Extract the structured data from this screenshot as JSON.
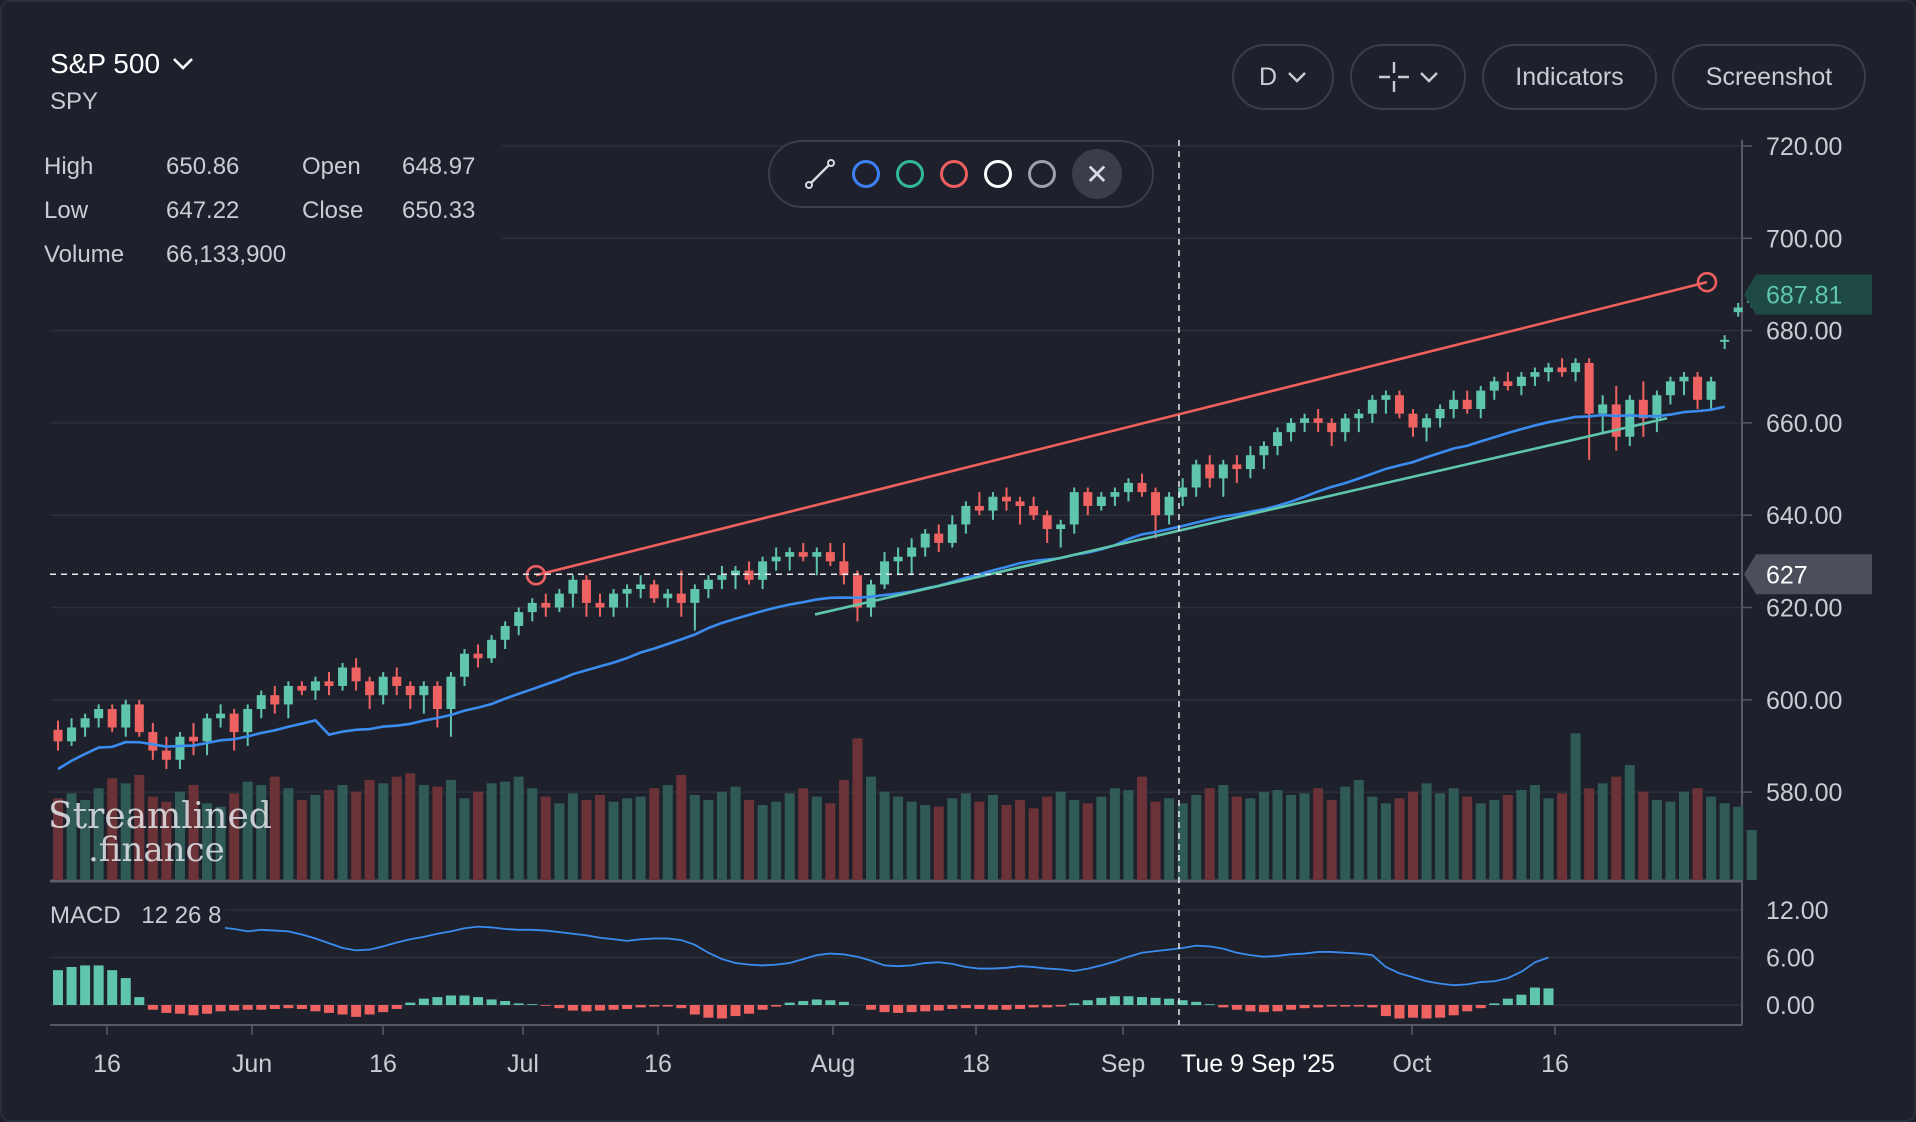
{
  "header": {
    "symbol_name": "S&P 500",
    "ticker": "SPY",
    "interval_label": "D",
    "indicators_label": "Indicators",
    "screenshot_label": "Screenshot"
  },
  "ohlc": {
    "high_label": "High",
    "high": "650.86",
    "open_label": "Open",
    "open": "648.97",
    "low_label": "Low",
    "low": "647.22",
    "close_label": "Close",
    "close": "650.33",
    "volume_label": "Volume",
    "volume": "66,133,900"
  },
  "draw_toolbar": {
    "colors": [
      "#3b82f6",
      "#34b89a",
      "#ef5f5f",
      "#ffffff",
      "#9aa0ac"
    ]
  },
  "colors": {
    "up": "#5fc6ad",
    "down": "#ef6262",
    "ma": "#3b8cf0",
    "upper_trend": "#ef5f5f",
    "lower_trend": "#5fc6ad",
    "bg": "#1e212b",
    "grid": "#2c303b",
    "axis_text": "#c9ccd4"
  },
  "macd": {
    "label": "MACD",
    "params": "12 26 8"
  },
  "logo": {
    "line1": "Streamlined",
    "line2": ".finance"
  },
  "crosshair": {
    "price": "627",
    "date": "Tue 9 Sep '25"
  },
  "last_price": "687.81",
  "chart_data": {
    "type": "candlestick",
    "price_axis": {
      "ticks": [
        "720.00",
        "700.00",
        "680.00",
        "660.00",
        "640.00",
        "620.00",
        "600.00",
        "580.00"
      ],
      "ylim": [
        571,
        720
      ]
    },
    "macd_axis": {
      "ticks": [
        "12.00",
        "6.00",
        "0.00"
      ]
    },
    "x_ticks": [
      "16",
      "Jun",
      "16",
      "Jul",
      "16",
      "Aug",
      "18",
      "Sep",
      "Oct",
      "16"
    ],
    "candles": [
      [
        593.5,
        595.5,
        589.0,
        591.0
      ],
      [
        591,
        596,
        590,
        594
      ],
      [
        594,
        597,
        592,
        596
      ],
      [
        596,
        599,
        594,
        598
      ],
      [
        598,
        599,
        593,
        594
      ],
      [
        594,
        600,
        592,
        599
      ],
      [
        599,
        600,
        592,
        593
      ],
      [
        593,
        595,
        587,
        589
      ],
      [
        589,
        592,
        585,
        587
      ],
      [
        587,
        593,
        585,
        592
      ],
      [
        592,
        595,
        588,
        591
      ],
      [
        591,
        597,
        588,
        596
      ],
      [
        596,
        599,
        594,
        597
      ],
      [
        597,
        598,
        589,
        593
      ],
      [
        593,
        599,
        590,
        598
      ],
      [
        598,
        602,
        596,
        601
      ],
      [
        601,
        603,
        597,
        599
      ],
      [
        599,
        604,
        596,
        603
      ],
      [
        603,
        604,
        601,
        602
      ],
      [
        602,
        605,
        600,
        604
      ],
      [
        604,
        606,
        601,
        603
      ],
      [
        603,
        608,
        602,
        607
      ],
      [
        607,
        609,
        602,
        604
      ],
      [
        604,
        605,
        598,
        601
      ],
      [
        601,
        606,
        599,
        605
      ],
      [
        605,
        607,
        601,
        603
      ],
      [
        603,
        604,
        598,
        601
      ],
      [
        601,
        604,
        597,
        603
      ],
      [
        603,
        604,
        594,
        598
      ],
      [
        598,
        606,
        592,
        605
      ],
      [
        605,
        611,
        603,
        610
      ],
      [
        610,
        612,
        607,
        609
      ],
      [
        609,
        614,
        608,
        613
      ],
      [
        613,
        617,
        611,
        616
      ],
      [
        616,
        620,
        614,
        619
      ],
      [
        619,
        622,
        617,
        621
      ],
      [
        621,
        623,
        618,
        620
      ],
      [
        620,
        624,
        619,
        623
      ],
      [
        623,
        627,
        620,
        626
      ],
      [
        626,
        627,
        618,
        621
      ],
      [
        621,
        623,
        618,
        620
      ],
      [
        620,
        624,
        618,
        623
      ],
      [
        623,
        625,
        620,
        624
      ],
      [
        624,
        627,
        622,
        625
      ],
      [
        625,
        626,
        621,
        622
      ],
      [
        622,
        624,
        620,
        623
      ],
      [
        623,
        628,
        618,
        621
      ],
      [
        621,
        625,
        615,
        624
      ],
      [
        624,
        627,
        622,
        626
      ],
      [
        626,
        629,
        624,
        627
      ],
      [
        627,
        629,
        624,
        628
      ],
      [
        628,
        630,
        625,
        626
      ],
      [
        626,
        631,
        624,
        630
      ],
      [
        630,
        633,
        628,
        631
      ],
      [
        631,
        633,
        628,
        632
      ],
      [
        632,
        634,
        630,
        631
      ],
      [
        631,
        633,
        627,
        632
      ],
      [
        632,
        634,
        629,
        630
      ],
      [
        630,
        634,
        625,
        627
      ],
      [
        627,
        628,
        617,
        620
      ],
      [
        620,
        626,
        618,
        625
      ],
      [
        625,
        632,
        624,
        630
      ],
      [
        630,
        633,
        627,
        631
      ],
      [
        631,
        635,
        627,
        633
      ],
      [
        633,
        637,
        631,
        636
      ],
      [
        636,
        638,
        632,
        634
      ],
      [
        634,
        640,
        633,
        638
      ],
      [
        638,
        643,
        636,
        642
      ],
      [
        642,
        645,
        640,
        641
      ],
      [
        641,
        645,
        639,
        644
      ],
      [
        644,
        646,
        641,
        643
      ],
      [
        643,
        644,
        638,
        642
      ],
      [
        642,
        644,
        639,
        640
      ],
      [
        640,
        641,
        634,
        637
      ],
      [
        637,
        639,
        633,
        638
      ],
      [
        638,
        646,
        636,
        645
      ],
      [
        645,
        646,
        640,
        642
      ],
      [
        642,
        645,
        641,
        644
      ],
      [
        644,
        646,
        642,
        645
      ],
      [
        645,
        648,
        643,
        647
      ],
      [
        647,
        649,
        644,
        645
      ],
      [
        645,
        646,
        635,
        640
      ],
      [
        640,
        645,
        638,
        644
      ],
      [
        644,
        648,
        642,
        646
      ],
      [
        646,
        652,
        644,
        651
      ],
      [
        651,
        653,
        646,
        648
      ],
      [
        648,
        652,
        644,
        651
      ],
      [
        651,
        653,
        647,
        650
      ],
      [
        650,
        655,
        648,
        653
      ],
      [
        653,
        656,
        650,
        655
      ],
      [
        655,
        659,
        653,
        658
      ],
      [
        658,
        661,
        656,
        660
      ],
      [
        660,
        662,
        658,
        661
      ],
      [
        661,
        663,
        658,
        660
      ],
      [
        660,
        661,
        655,
        658
      ],
      [
        658,
        662,
        656,
        661
      ],
      [
        661,
        663,
        658,
        662
      ],
      [
        662,
        666,
        660,
        665
      ],
      [
        665,
        667,
        662,
        666
      ],
      [
        666,
        667,
        661,
        662
      ],
      [
        662,
        663,
        657,
        659
      ],
      [
        659,
        662,
        656,
        661
      ],
      [
        661,
        664,
        659,
        663
      ],
      [
        663,
        667,
        661,
        665
      ],
      [
        665,
        667,
        662,
        663
      ],
      [
        663,
        668,
        661,
        667
      ],
      [
        667,
        670,
        665,
        669
      ],
      [
        669,
        671,
        667,
        668
      ],
      [
        668,
        671,
        666,
        670
      ],
      [
        670,
        672,
        668,
        671
      ],
      [
        671,
        673,
        669,
        672
      ],
      [
        672,
        674,
        670,
        671
      ],
      [
        671,
        674,
        669,
        673
      ],
      [
        673,
        674,
        652,
        662
      ],
      [
        662,
        666,
        658,
        664
      ],
      [
        664,
        668,
        654,
        657
      ],
      [
        657,
        666,
        655,
        665
      ],
      [
        665,
        669,
        657,
        661
      ],
      [
        661,
        667,
        658,
        666
      ],
      [
        666,
        670,
        664,
        669
      ],
      [
        669,
        671,
        666,
        670
      ],
      [
        670,
        671,
        663,
        665
      ],
      [
        665,
        670,
        663,
        669
      ],
      [
        678,
        679,
        676,
        678
      ],
      [
        684,
        686,
        683,
        685
      ],
      [
        686,
        688,
        685,
        687.8
      ]
    ],
    "volume": [
      49,
      52,
      48,
      55,
      61,
      58,
      63,
      50,
      47,
      53,
      57,
      46,
      44,
      52,
      59,
      57,
      62,
      55,
      48,
      51,
      54,
      57,
      53,
      60,
      58,
      62,
      64,
      57,
      56,
      60,
      49,
      53,
      58,
      59,
      62,
      55,
      50,
      46,
      52,
      48,
      51,
      47,
      49,
      50,
      55,
      57,
      63,
      51,
      48,
      53,
      56,
      48,
      45,
      47,
      52,
      55,
      50,
      46,
      60,
      85,
      62,
      53,
      50,
      47,
      45,
      44,
      49,
      52,
      47,
      51,
      45,
      48,
      43,
      50,
      53,
      48,
      46,
      50,
      55,
      54,
      62,
      47,
      49,
      46,
      51,
      55,
      57,
      50,
      49,
      53,
      54,
      51,
      52,
      55,
      48,
      56,
      60,
      50,
      46,
      49,
      53,
      58,
      52,
      55,
      50,
      46,
      48,
      51,
      54,
      57,
      49,
      52,
      88,
      55,
      58,
      62,
      69,
      53,
      48,
      47,
      53,
      55,
      50,
      46,
      44,
      30
    ],
    "ma": [
      [
        0,
        568
      ],
      [
        10,
        573
      ],
      [
        20,
        580
      ],
      [
        30,
        587
      ],
      [
        40,
        594
      ],
      [
        50,
        599
      ],
      [
        60,
        604
      ],
      [
        70,
        607
      ],
      [
        80,
        608
      ],
      [
        90,
        609
      ],
      [
        100,
        612
      ],
      [
        110,
        616
      ],
      [
        120,
        620
      ],
      [
        130,
        623
      ],
      [
        140,
        625
      ],
      [
        150,
        627
      ],
      [
        160,
        630
      ],
      [
        170,
        634
      ],
      [
        180,
        639
      ],
      [
        190,
        643
      ],
      [
        200,
        646
      ],
      [
        210,
        648
      ],
      [
        220,
        649
      ],
      [
        230,
        650
      ],
      [
        240,
        651
      ],
      [
        250,
        653
      ],
      [
        260,
        655
      ],
      [
        270,
        657
      ],
      [
        280,
        659
      ],
      [
        290,
        661
      ],
      [
        300,
        662
      ],
      [
        310,
        664
      ],
      [
        320,
        666
      ],
      [
        330,
        669
      ],
      [
        340,
        670
      ],
      [
        350,
        672
      ],
      [
        360,
        674
      ],
      [
        370,
        677
      ],
      [
        380,
        680
      ],
      [
        390,
        683
      ],
      [
        400,
        686
      ],
      [
        410,
        689
      ],
      [
        420,
        690
      ],
      [
        430,
        691
      ],
      [
        440,
        692
      ],
      [
        450,
        693
      ],
      [
        460,
        694
      ],
      [
        470,
        696
      ],
      [
        480,
        697
      ],
      [
        490,
        699
      ],
      [
        500,
        700
      ],
      [
        510,
        702
      ],
      [
        520,
        704
      ],
      [
        530,
        706
      ],
      [
        540,
        707
      ],
      [
        550,
        708
      ],
      [
        560,
        710
      ],
      [
        570,
        711
      ],
      [
        580,
        712
      ],
      [
        590,
        713
      ],
      [
        600,
        714
      ],
      [
        610,
        715
      ],
      [
        620,
        716
      ],
      [
        630,
        718
      ],
      [
        640,
        720
      ],
      [
        650,
        721
      ],
      [
        660,
        722
      ],
      [
        670,
        723
      ],
      [
        680,
        724
      ],
      [
        690,
        725
      ],
      [
        700,
        726
      ],
      [
        710,
        727
      ],
      [
        720,
        728
      ],
      [
        730,
        729
      ],
      [
        740,
        730
      ],
      [
        750,
        731
      ],
      [
        760,
        732
      ],
      [
        770,
        733
      ],
      [
        780,
        734
      ],
      [
        790,
        735
      ],
      [
        800,
        736
      ],
      [
        810,
        737
      ],
      [
        820,
        738
      ]
    ]
  }
}
